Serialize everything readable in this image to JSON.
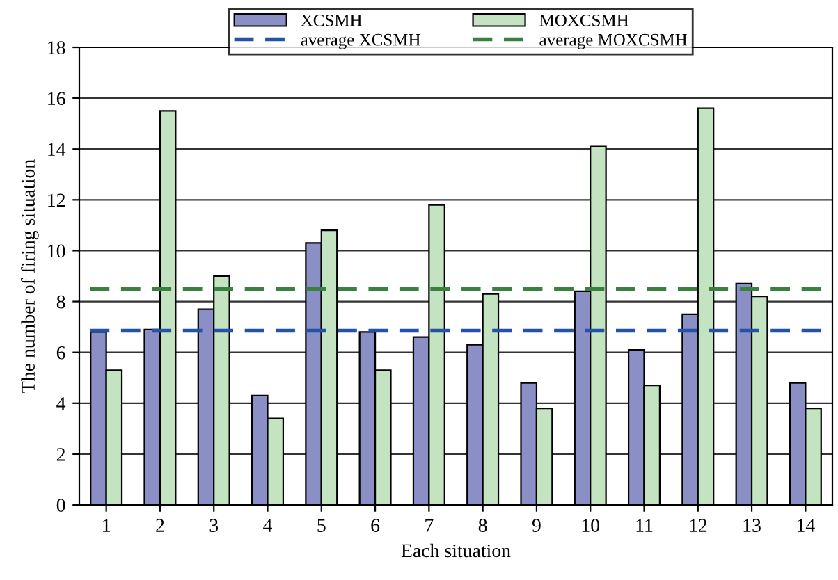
{
  "chart_data": {
    "type": "bar",
    "xlabel": "Each situation",
    "ylabel": "The number of firing situation",
    "categories": [
      "1",
      "2",
      "3",
      "4",
      "5",
      "6",
      "7",
      "8",
      "9",
      "10",
      "11",
      "12",
      "13",
      "14"
    ],
    "series": [
      {
        "name": "XCSMH",
        "color": "#8a8fc6",
        "values": [
          6.8,
          6.9,
          7.7,
          4.3,
          10.3,
          6.8,
          6.6,
          6.3,
          4.8,
          8.4,
          6.1,
          7.5,
          8.7,
          4.8
        ]
      },
      {
        "name": "MOXCSMH",
        "color": "#c4e3c0",
        "values": [
          5.3,
          15.5,
          9.0,
          3.4,
          10.8,
          5.3,
          11.8,
          8.3,
          3.8,
          14.1,
          4.7,
          15.6,
          8.2,
          3.8
        ]
      }
    ],
    "ref_lines": [
      {
        "axis": "y",
        "value": 6.85,
        "label": "average XCSMH",
        "color": "#2352a8",
        "line_style": "dashed"
      },
      {
        "axis": "y",
        "value": 8.5,
        "label": "average MOXCSMH",
        "color": "#3a8040",
        "line_style": "dashed"
      }
    ],
    "ylim": [
      0,
      18
    ],
    "yticks": [
      0,
      2,
      4,
      6,
      8,
      10,
      12,
      14,
      16,
      18
    ],
    "grid": "y",
    "legend": "top"
  }
}
